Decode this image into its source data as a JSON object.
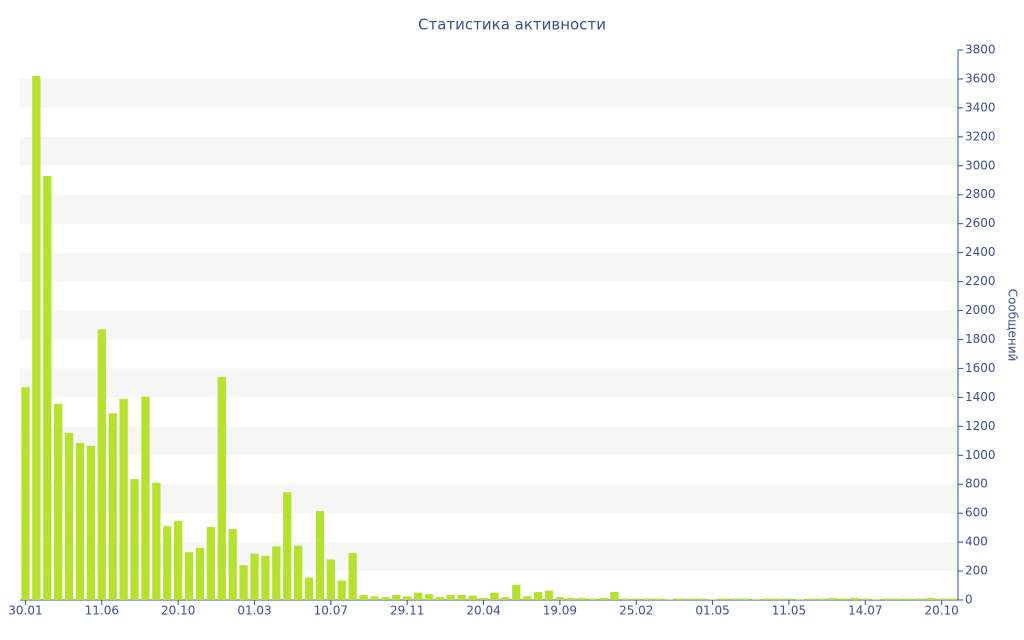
{
  "chart_data": {
    "type": "bar",
    "title": "Статистика активности",
    "y_label": "Сообщений",
    "categories": [
      "30.01",
      null,
      null,
      null,
      null,
      null,
      null,
      "11.06",
      null,
      null,
      null,
      null,
      null,
      null,
      "20.10",
      null,
      null,
      null,
      null,
      null,
      null,
      "01.03",
      null,
      null,
      null,
      null,
      null,
      null,
      "10.07",
      null,
      null,
      null,
      null,
      null,
      null,
      "29.11",
      null,
      null,
      null,
      null,
      null,
      null,
      "20.04",
      null,
      null,
      null,
      null,
      null,
      null,
      "19.09",
      null,
      null,
      null,
      null,
      null,
      null,
      "25.02",
      null,
      null,
      null,
      null,
      null,
      null,
      "01.05",
      null,
      null,
      null,
      null,
      null,
      null,
      "11.05",
      null,
      null,
      null,
      null,
      null,
      null,
      "14.07",
      null,
      null,
      null,
      null,
      null,
      null,
      "20.10",
      null
    ],
    "values": [
      1470,
      3620,
      2930,
      1355,
      1155,
      1085,
      1065,
      1870,
      1290,
      1390,
      835,
      1405,
      810,
      510,
      545,
      330,
      360,
      505,
      1540,
      490,
      240,
      320,
      305,
      370,
      745,
      375,
      155,
      615,
      280,
      135,
      325,
      35,
      25,
      20,
      35,
      25,
      50,
      40,
      20,
      35,
      35,
      30,
      15,
      50,
      20,
      105,
      25,
      55,
      65,
      20,
      15,
      15,
      10,
      15,
      55,
      10,
      10,
      10,
      10,
      5,
      10,
      10,
      10,
      5,
      10,
      10,
      10,
      5,
      10,
      10,
      10,
      5,
      10,
      10,
      15,
      10,
      15,
      10,
      5,
      10,
      10,
      10,
      10,
      15,
      10,
      10
    ],
    "color": "#b7e12f",
    "ylim": [
      0,
      3800
    ],
    "yticks": [
      0,
      200,
      400,
      600,
      800,
      1000,
      1200,
      1400,
      1600,
      1800,
      2000,
      2200,
      2400,
      2600,
      2800,
      3000,
      3200,
      3400,
      3600,
      3800
    ],
    "grid": true,
    "y_axis_side": "right"
  }
}
